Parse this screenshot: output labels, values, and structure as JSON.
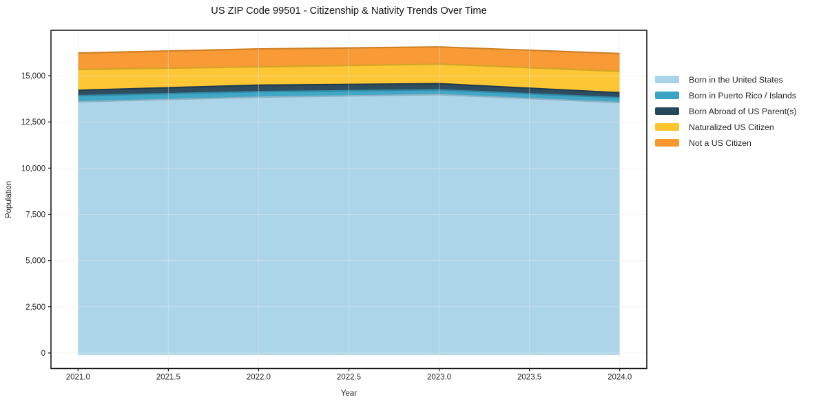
{
  "chart_data": {
    "type": "area",
    "stacked": true,
    "title": "US ZIP Code 99501 - Citizenship & Nativity Trends Over Time",
    "xlabel": "Year",
    "ylabel": "Population",
    "x": [
      2021,
      2022,
      2023,
      2024
    ],
    "series": [
      {
        "name": "Born in the United States",
        "color": "#a9d4e8",
        "values": [
          13700,
          13950,
          14090,
          13660
        ]
      },
      {
        "name": "Born in Puerto Rico / Islands",
        "color": "#3ba4c4",
        "values": [
          330,
          300,
          260,
          260
        ]
      },
      {
        "name": "Born Abroad of US Parent(s)",
        "color": "#27475c",
        "values": [
          290,
          350,
          330,
          270
        ]
      },
      {
        "name": "Naturalized US Citizen",
        "color": "#fdc42e",
        "values": [
          1130,
          990,
          1060,
          1160
        ]
      },
      {
        "name": "Not a US Citizen",
        "color": "#f8982f",
        "values": [
          890,
          970,
          930,
          960
        ]
      }
    ],
    "xticks": {
      "values": [
        2021.0,
        2021.5,
        2022.0,
        2022.5,
        2023.0,
        2023.5,
        2024.0
      ],
      "labels": [
        "2021.0",
        "2021.5",
        "2022.0",
        "2022.5",
        "2023.0",
        "2023.5",
        "2024.0"
      ]
    },
    "yticks": {
      "values": [
        0,
        2500,
        5000,
        7500,
        10000,
        12500,
        15000
      ],
      "labels": [
        "0",
        "2,500",
        "5,000",
        "7,500",
        "10,000",
        "12,500",
        "15,000"
      ]
    },
    "xlim": [
      2020.85,
      2024.15
    ],
    "ylim": [
      -840,
      17460
    ],
    "grid": true,
    "grid_color": "#e8e8e8",
    "spine_color": "#1a1a1a",
    "tick_label_color": "#262626",
    "legend_position": "right"
  }
}
